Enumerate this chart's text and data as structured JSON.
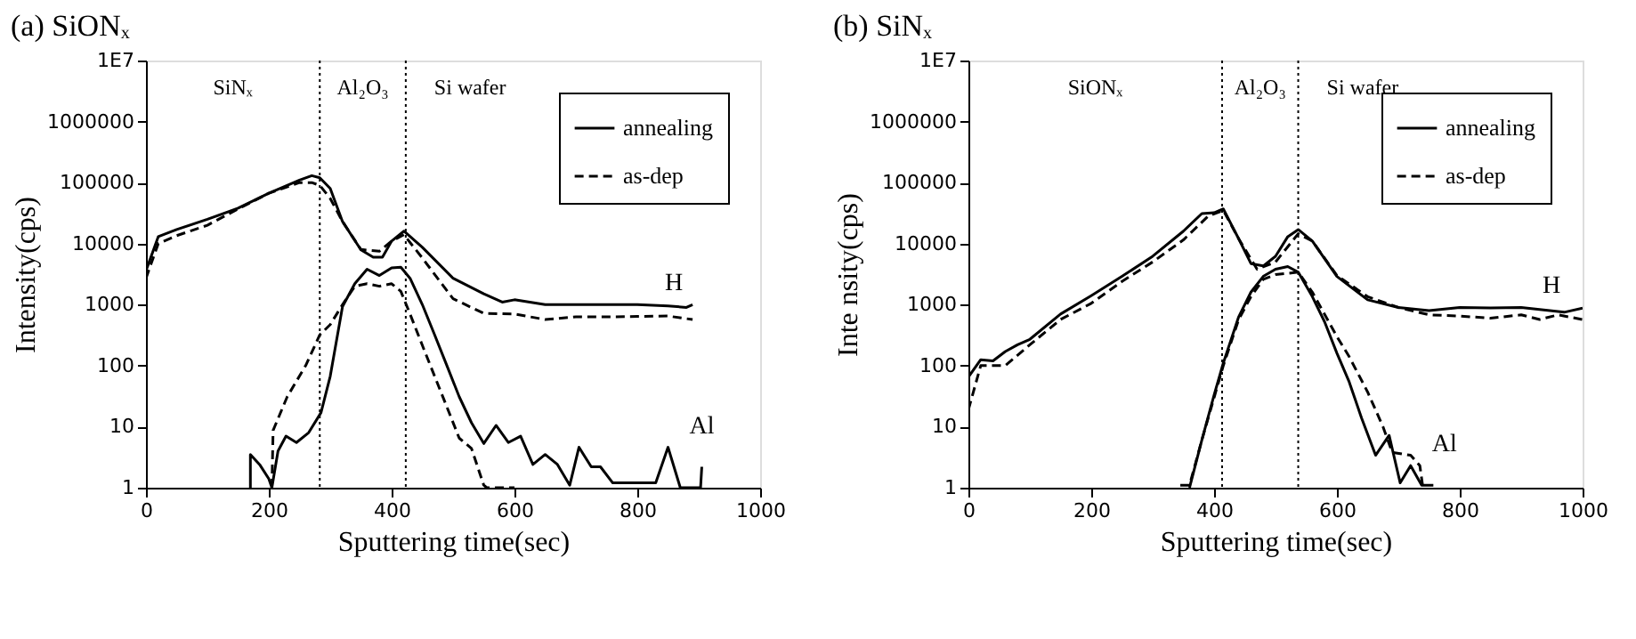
{
  "chart_data": [
    {
      "type": "line",
      "title": "(a) SiONₓ",
      "xlabel": "Sputtering time(sec)",
      "ylabel": "Intensity(cps)",
      "log": true,
      "legend": "top right",
      "xlim": [
        0,
        1000
      ],
      "xticks": [
        0,
        200,
        400,
        600,
        800,
        1000
      ],
      "ylim": [
        1,
        10000000
      ],
      "yticks": [
        1,
        10,
        100,
        1000,
        10000,
        100000,
        1000000,
        {
          "value": 10000000,
          "label": "1E7"
        }
      ],
      "ref_lines": [
        {
          "axis": "x",
          "value": 283,
          "line_style": "dotted",
          "color": "#000000"
        },
        {
          "axis": "x",
          "value": 423,
          "line_style": "dotted",
          "color": "#000000"
        }
      ],
      "annotations": [
        "SiNₓ",
        "Al₂O₃",
        "Si wafer",
        {
          "text": "H",
          "x": 810,
          "y": 1000
        },
        {
          "text": "Al",
          "x": 850,
          "y": 4.6
        }
      ],
      "series": [
        {
          "name": "annealing",
          "color": "#000000",
          "line_style": "solid",
          "x": [
            0,
            20,
            50,
            100,
            150,
            200,
            250,
            270,
            283,
            300,
            320,
            350,
            370,
            385,
            400,
            420,
            450,
            500,
            550,
            580,
            600,
            650,
            700,
            750,
            800,
            850,
            880,
            890
          ],
          "values": [
            3600,
            13000,
            17000,
            25000,
            38000,
            67000,
            110000,
            130000,
            120000,
            80000,
            23000,
            7900,
            6000,
            6000,
            11000,
            16000,
            8700,
            2700,
            1500,
            1100,
            1200,
            1000,
            1000,
            1000,
            1000,
            950,
            900,
            1000
          ]
        },
        {
          "name": "as-dep",
          "color": "#000000",
          "line_style": "dashed",
          "x": [
            0,
            20,
            50,
            100,
            150,
            200,
            250,
            270,
            283,
            300,
            320,
            350,
            380,
            400,
            420,
            450,
            500,
            550,
            600,
            650,
            700,
            750,
            800,
            850,
            890
          ],
          "values": [
            2700,
            10000,
            13500,
            20000,
            37000,
            67000,
            100000,
            100000,
            90000,
            55000,
            23000,
            8000,
            7500,
            11000,
            14000,
            5800,
            1250,
            720,
            700,
            570,
            630,
            630,
            640,
            650,
            570
          ]
        },
        {
          "color": "#000000",
          "line_style": "solid",
          "x": [
            170,
            170,
            185,
            200,
            205,
            215,
            228,
            245,
            265,
            285,
            300,
            320,
            340,
            360,
            380,
            400,
            415,
            430,
            450,
            470,
            490,
            510,
            530,
            550,
            570,
            590,
            610,
            630,
            650,
            670,
            690,
            705,
            725,
            740,
            760,
            830,
            850,
            870,
            903,
            905
          ],
          "values": [
            1,
            3.5,
            2.4,
            1.4,
            1,
            4,
            7,
            5.5,
            8,
            17,
            67,
            930,
            2200,
            3800,
            3000,
            4000,
            4100,
            2700,
            1000,
            320,
            100,
            31,
            11.6,
            5.3,
            10.5,
            5.5,
            7,
            2.4,
            3.5,
            2.4,
            1.1,
            4.6,
            2.2,
            2.2,
            1.2,
            1.2,
            4.6,
            1,
            1,
            2.2
          ]
        },
        {
          "color": "#000000",
          "line_style": "dashed",
          "x": [
            205,
            207,
            230,
            260,
            283,
            300,
            320,
            340,
            360,
            380,
            400,
            415,
            430,
            450,
            470,
            490,
            510,
            530,
            550,
            555,
            600
          ],
          "values": [
            1,
            8.7,
            31,
            100,
            320,
            470,
            1000,
            2000,
            2200,
            2000,
            2200,
            1650,
            700,
            215,
            67,
            21,
            6.5,
            4.4,
            1.1,
            1,
            1
          ]
        }
      ]
    },
    {
      "type": "line",
      "title": "(b) SiNₓ",
      "xlabel": "Sputtering time(sec)",
      "ylabel": "Inte nsity(cps)",
      "log": true,
      "legend": "top right",
      "xlim": [
        0,
        1000
      ],
      "xticks": [
        0,
        200,
        400,
        600,
        800,
        1000
      ],
      "ylim": [
        1,
        10000000
      ],
      "yticks": [
        1,
        10,
        100,
        1000,
        10000,
        100000,
        1000000,
        {
          "value": 10000000,
          "label": "1E7"
        }
      ],
      "ref_lines": [
        {
          "axis": "x",
          "value": 413,
          "line_style": "dotted",
          "color": "#000000"
        },
        {
          "axis": "x",
          "value": 537,
          "line_style": "dotted",
          "color": "#000000"
        }
      ],
      "annotations": [
        "SiONₓ",
        "Al₂O₃",
        "Si wafer",
        {
          "text": "H",
          "x": 900,
          "y": 900
        },
        {
          "text": "Al",
          "x": 720,
          "y": 2.3
        }
      ],
      "series": [
        {
          "name": "annealing",
          "color": "#000000",
          "line_style": "solid",
          "x": [
            0,
            20,
            40,
            60,
            80,
            100,
            150,
            200,
            250,
            300,
            350,
            380,
            400,
            415,
            440,
            460,
            480,
            500,
            520,
            537,
            560,
            600,
            650,
            700,
            750,
            800,
            850,
            900,
            970,
            1000
          ],
          "values": [
            65,
            125,
            120,
            170,
            220,
            270,
            700,
            1400,
            2900,
            6200,
            16000,
            31000,
            32000,
            37000,
            12000,
            4700,
            4300,
            6200,
            13000,
            17000,
            11000,
            2900,
            1200,
            900,
            800,
            900,
            880,
            900,
            750,
            880
          ]
        },
        {
          "name": "as-dep",
          "color": "#000000",
          "line_style": "dashed",
          "x": [
            0,
            20,
            60,
            100,
            150,
            200,
            250,
            300,
            350,
            390,
            415,
            440,
            470,
            500,
            537,
            560,
            600,
            650,
            700,
            750,
            800,
            850,
            900,
            930,
            960,
            1000
          ],
          "values": [
            19,
            100,
            100,
            220,
            570,
            1050,
            2400,
            5000,
            11500,
            28000,
            35000,
            12000,
            3800,
            5000,
            14500,
            11000,
            3000,
            1350,
            900,
            680,
            650,
            600,
            680,
            570,
            680,
            570
          ]
        },
        {
          "color": "#000000",
          "line_style": "solid",
          "x": [
            360,
            380,
            400,
            415,
            440,
            460,
            480,
            500,
            520,
            537,
            560,
            580,
            600,
            620,
            640,
            663,
            685,
            703,
            720,
            738,
            757
          ],
          "values": [
            1,
            6,
            33,
            110,
            630,
            1600,
            2900,
            3800,
            4200,
            3400,
            1350,
            520,
            160,
            54,
            14,
            3.4,
            7.2,
            1.2,
            2.3,
            1.1,
            1.1
          ]
        },
        {
          "color": "#000000",
          "line_style": "dashed",
          "x": [
            345,
            360,
            380,
            400,
            415,
            440,
            460,
            480,
            500,
            537,
            560,
            600,
            620,
            650,
            675,
            690,
            720,
            735,
            740
          ],
          "values": [
            1.1,
            1.1,
            6,
            30,
            100,
            570,
            1350,
            2600,
            3100,
            3400,
            1600,
            300,
            140,
            37,
            10,
            3.8,
            3.4,
            2.3,
            1
          ]
        }
      ]
    }
  ]
}
